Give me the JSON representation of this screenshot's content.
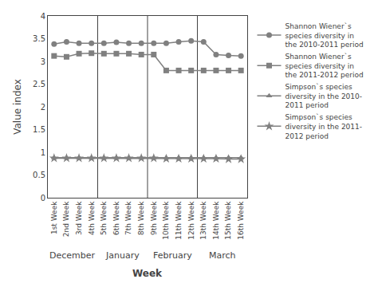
{
  "chart_data": {
    "type": "line",
    "xlabel": "Week",
    "ylabel": "Value index",
    "categories": [
      "1st Week",
      "2nd Week",
      "3rd Week",
      "4th Week",
      "5th Week",
      "6th Week",
      "7th Week",
      "8th Week",
      "9th Week",
      "10th Week",
      "11th Week",
      "12th Week",
      "13th Week",
      "14th Week",
      "15th Week",
      "16th Week"
    ],
    "series": [
      {
        "name": "Shannon Wiener`s\nspecies diversity in\nthe 2010-2011 period",
        "color": "#808080",
        "marker": "circle",
        "values": [
          3.38,
          3.43,
          3.4,
          3.4,
          3.4,
          3.42,
          3.4,
          3.4,
          3.4,
          3.4,
          3.43,
          3.45,
          3.43,
          3.15,
          3.13,
          3.12
        ]
      },
      {
        "name": "Shannon Wiener`s\nspecies diversity in\nthe 2011-2012 period",
        "color": "#808080",
        "marker": "square",
        "values": [
          3.12,
          3.1,
          3.17,
          3.18,
          3.17,
          3.17,
          3.17,
          3.15,
          3.15,
          2.8,
          2.8,
          2.8,
          2.8,
          2.8,
          2.8,
          2.8
        ]
      },
      {
        "name": "Simpson`s species\ndiversity in the 2010-\n2011 period",
        "color": "#808080",
        "marker": "triangle-up",
        "values": [
          0.88,
          0.88,
          0.88,
          0.88,
          0.88,
          0.88,
          0.88,
          0.88,
          0.88,
          0.88,
          0.88,
          0.88,
          0.88,
          0.88,
          0.88,
          0.88
        ]
      },
      {
        "name": "Simpson`s species\ndiversity in the 2011-\n2012 period",
        "color": "#808080",
        "marker": "star",
        "values": [
          0.87,
          0.87,
          0.87,
          0.87,
          0.87,
          0.87,
          0.87,
          0.87,
          0.87,
          0.86,
          0.86,
          0.86,
          0.86,
          0.86,
          0.85,
          0.85
        ]
      }
    ],
    "annotations": [
      {
        "text": "December",
        "from": "1st Week",
        "to": "4th Week"
      },
      {
        "text": "January",
        "from": "5th Week",
        "to": "8th Week"
      },
      {
        "text": "February",
        "from": "9th Week",
        "to": "12th Week"
      },
      {
        "text": "March",
        "from": "13th Week",
        "to": "16th Week"
      }
    ],
    "ylim": [
      0,
      4
    ],
    "yticks": [
      0,
      0.5,
      1,
      1.5,
      2,
      2.5,
      3,
      3.5,
      4
    ],
    "grid": false,
    "legend": "right"
  }
}
